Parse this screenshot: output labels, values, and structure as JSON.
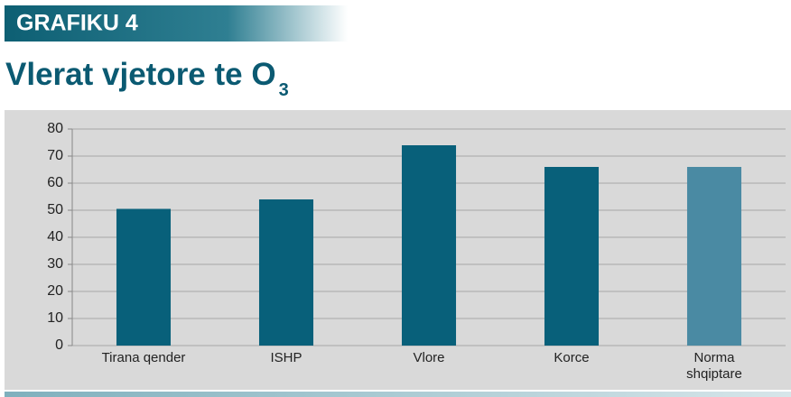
{
  "header": {
    "label": "GRAFIKU 4"
  },
  "chart_data": {
    "type": "bar",
    "title": "Vlerat vjetore te O",
    "title_subscript": "3",
    "categories": [
      "Tirana qender",
      "ISHP",
      "Vlore",
      "Korce",
      "Norma shqiptare"
    ],
    "values": [
      50.5,
      54,
      74,
      66,
      66
    ],
    "colors": [
      "#08607a",
      "#08607a",
      "#08607a",
      "#08607a",
      "#4a8aa3"
    ],
    "ylim": [
      0,
      80
    ],
    "yticks": [
      0,
      10,
      20,
      30,
      40,
      50,
      60,
      70,
      80
    ],
    "grid": true
  }
}
